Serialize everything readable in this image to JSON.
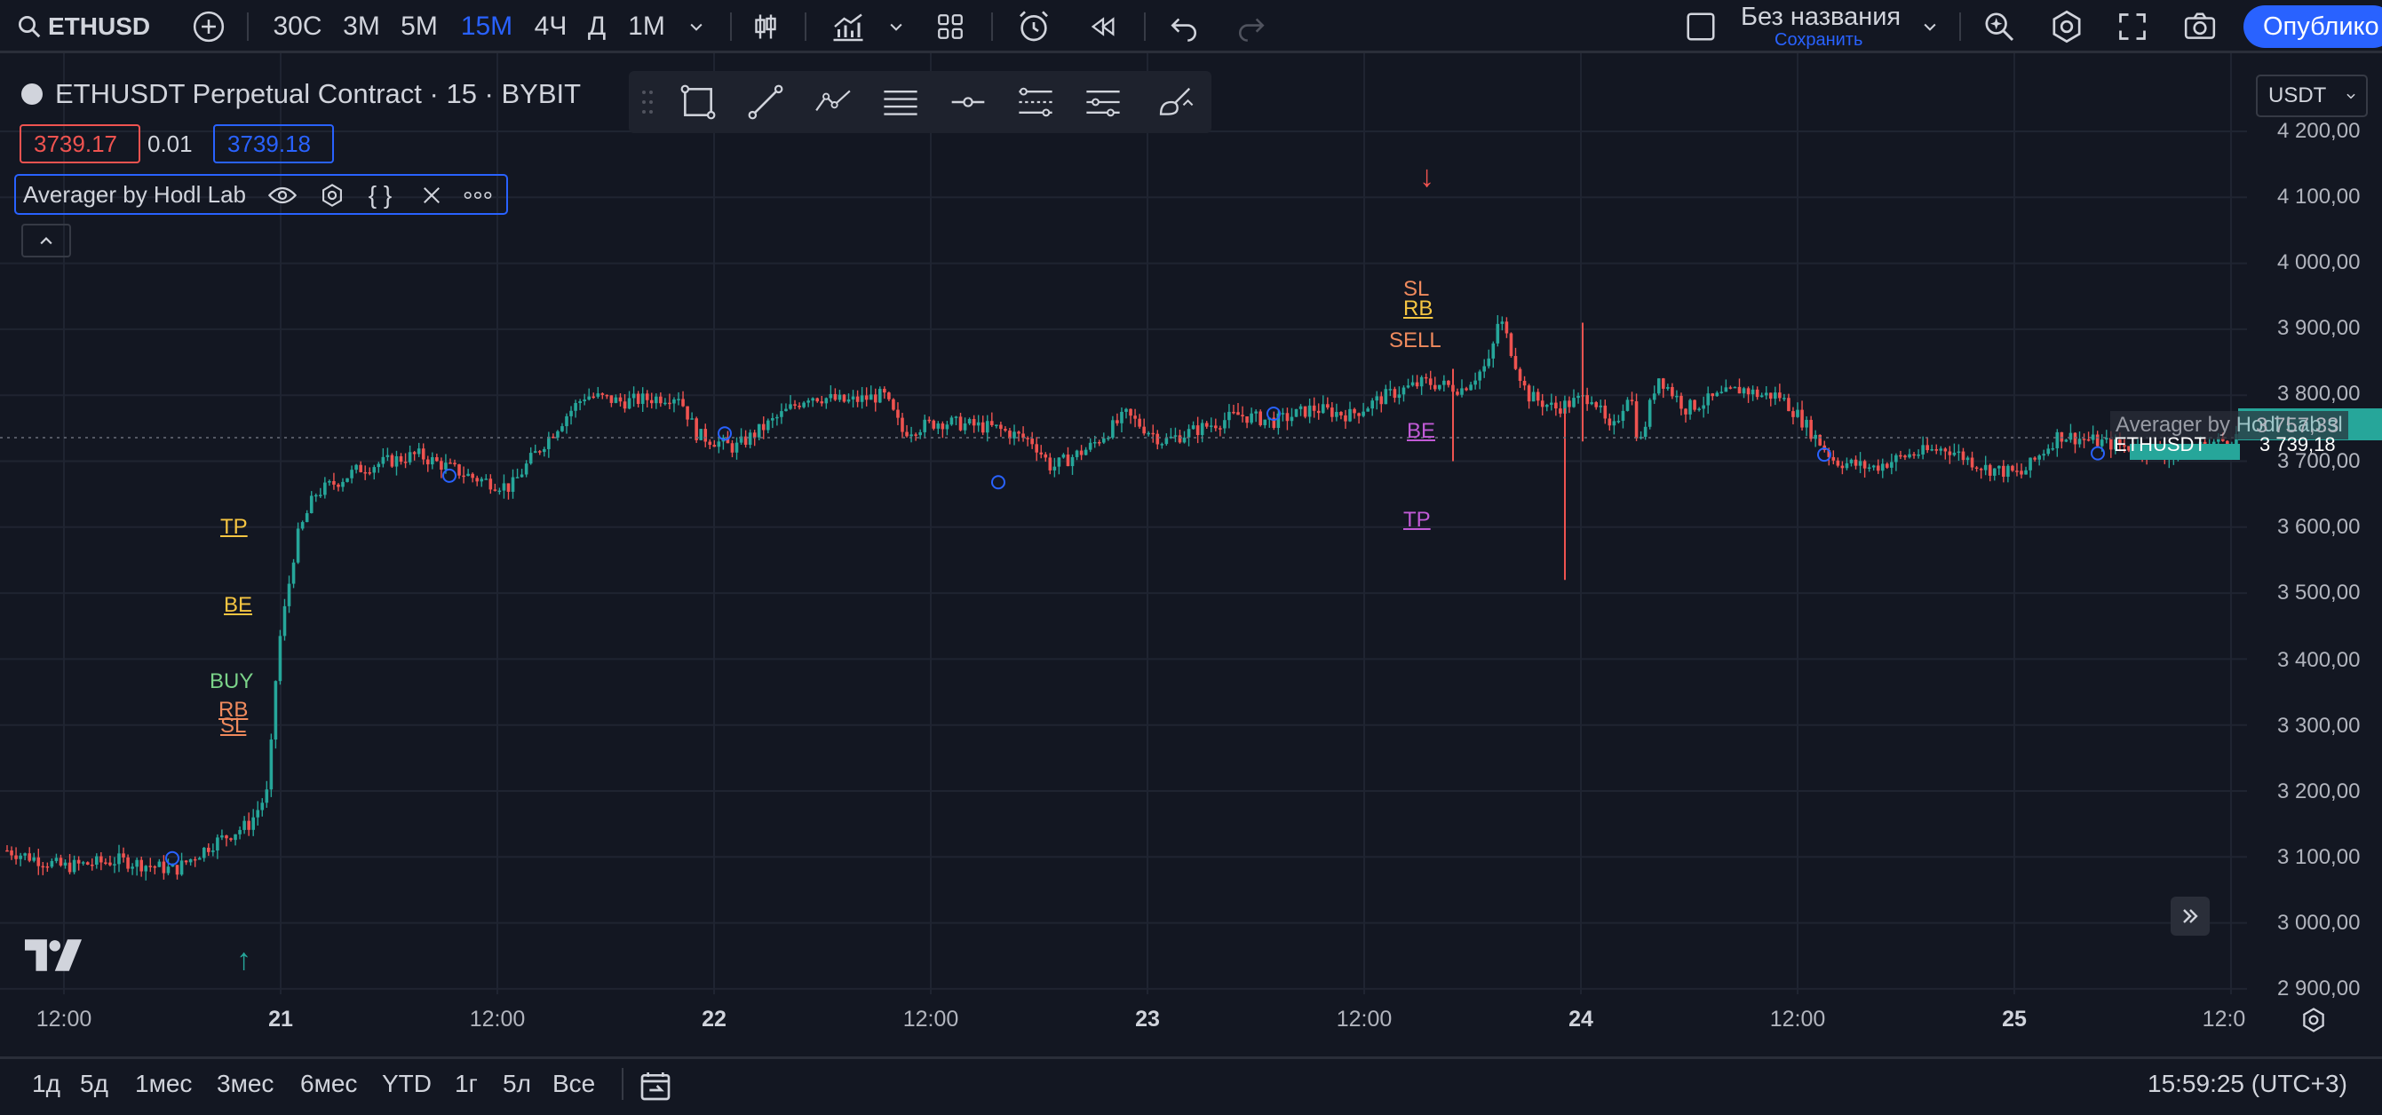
{
  "topbar": {
    "symbol": "ETHUSD",
    "timeframes": [
      "30С",
      "3М",
      "5М",
      "15М",
      "4Ч",
      "Д",
      "1М"
    ],
    "active_timeframe": "15М",
    "layout_title": "Без названия",
    "save_label": "Сохранить",
    "publish_label": "Опублико"
  },
  "legend": {
    "title": "ETHUSDT Perpetual Contract · 15 · BYBIT",
    "bid": "3739.17",
    "spread": "0.01",
    "ask": "3739.18",
    "indicator_name": "Averager by Hodl Lab"
  },
  "currency": "USDT",
  "colors": {
    "up": "#26a69a",
    "down": "#ef5350",
    "accent": "#2962ff",
    "background": "#131722",
    "marker_yellow": "#f5c542",
    "marker_orange": "#f08a5d",
    "marker_green": "#7bd389",
    "marker_purple": "#c15ad6"
  },
  "chart_data": {
    "type": "candlestick",
    "symbol": "ETHUSDT",
    "interval": "15",
    "ylim": [
      2900,
      4250
    ],
    "y_ticks": [
      "4 200,00",
      "4 100,00",
      "4 000,00",
      "3 900,00",
      "3 800,00",
      "3 700,00",
      "3 600,00",
      "3 500,00",
      "3 400,00",
      "3 300,00",
      "3 200,00",
      "3 100,00",
      "3 000,00",
      "2 900,00"
    ],
    "x_ticks": [
      {
        "label": "12:00",
        "bold": false
      },
      {
        "label": "21",
        "bold": true
      },
      {
        "label": "12:00",
        "bold": false
      },
      {
        "label": "22",
        "bold": true
      },
      {
        "label": "12:00",
        "bold": false
      },
      {
        "label": "23",
        "bold": true
      },
      {
        "label": "12:00",
        "bold": false
      },
      {
        "label": "24",
        "bold": true
      },
      {
        "label": "12:00",
        "bold": false
      },
      {
        "label": "25",
        "bold": true
      },
      {
        "label": "12:0",
        "bold": false
      }
    ],
    "price_path": [
      [
        0,
        3110
      ],
      [
        0.03,
        3085
      ],
      [
        0.06,
        3095
      ],
      [
        0.09,
        3080
      ],
      [
        0.11,
        3120
      ],
      [
        0.13,
        3150
      ],
      [
        0.14,
        3200
      ],
      [
        0.145,
        3410
      ],
      [
        0.155,
        3580
      ],
      [
        0.165,
        3650
      ],
      [
        0.19,
        3690
      ],
      [
        0.22,
        3710
      ],
      [
        0.25,
        3675
      ],
      [
        0.27,
        3660
      ],
      [
        0.28,
        3700
      ],
      [
        0.3,
        3770
      ],
      [
        0.31,
        3800
      ],
      [
        0.33,
        3790
      ],
      [
        0.36,
        3800
      ],
      [
        0.37,
        3740
      ],
      [
        0.39,
        3720
      ],
      [
        0.41,
        3760
      ],
      [
        0.43,
        3800
      ],
      [
        0.45,
        3790
      ],
      [
        0.47,
        3800
      ],
      [
        0.48,
        3745
      ],
      [
        0.5,
        3760
      ],
      [
        0.53,
        3750
      ],
      [
        0.55,
        3730
      ],
      [
        0.56,
        3690
      ],
      [
        0.58,
        3720
      ],
      [
        0.6,
        3770
      ],
      [
        0.62,
        3730
      ],
      [
        0.64,
        3750
      ],
      [
        0.66,
        3770
      ],
      [
        0.68,
        3760
      ],
      [
        0.7,
        3780
      ],
      [
        0.72,
        3770
      ],
      [
        0.74,
        3800
      ],
      [
        0.76,
        3820
      ],
      [
        0.78,
        3810
      ],
      [
        0.795,
        3850
      ],
      [
        0.8,
        3920
      ],
      [
        0.805,
        3880
      ],
      [
        0.815,
        3800
      ],
      [
        0.83,
        3780
      ],
      [
        0.85,
        3800
      ],
      [
        0.86,
        3740
      ],
      [
        0.87,
        3810
      ],
      [
        0.875,
        3720
      ],
      [
        0.885,
        3830
      ],
      [
        0.9,
        3780
      ],
      [
        0.92,
        3800
      ],
      [
        0.93,
        3810
      ],
      [
        0.94,
        3800
      ],
      [
        0.95,
        3800
      ],
      [
        0.96,
        3770
      ],
      [
        0.98,
        3700
      ],
      [
        1.0,
        3690
      ],
      [
        1.02,
        3710
      ],
      [
        1.04,
        3720
      ],
      [
        1.06,
        3690
      ],
      [
        1.08,
        3680
      ],
      [
        1.1,
        3740
      ],
      [
        1.12,
        3730
      ],
      [
        1.14,
        3720
      ],
      [
        1.16,
        3710
      ],
      [
        1.18,
        3725
      ],
      [
        1.2,
        3740
      ]
    ],
    "markers": [
      {
        "label": "TP",
        "color": "marker_yellow"
      },
      {
        "label": "BE",
        "color": "marker_yellow"
      },
      {
        "label": "BUY",
        "color": "marker_green"
      },
      {
        "label": "RB",
        "color": "marker_orange"
      },
      {
        "label": "SL",
        "color": "marker_orange"
      },
      {
        "label": "SL",
        "color": "marker_orange"
      },
      {
        "label": "RB",
        "color": "marker_yellow"
      },
      {
        "label": "SELL",
        "color": "marker_orange"
      },
      {
        "label": "BE",
        "color": "marker_purple"
      },
      {
        "label": "TP",
        "color": "marker_purple"
      }
    ],
    "last_price_label": "ETHUSDT",
    "last_price": "3 739,18",
    "indicator_tag": "Averager by Hodl Lab:sl",
    "indicator_value": "3 757,33"
  },
  "bottombar": {
    "ranges": [
      "1д",
      "5д",
      "1мес",
      "3мес",
      "6мес",
      "YTD",
      "1г",
      "5л",
      "Все"
    ],
    "clock": "15:59:25 (UTC+3)"
  }
}
